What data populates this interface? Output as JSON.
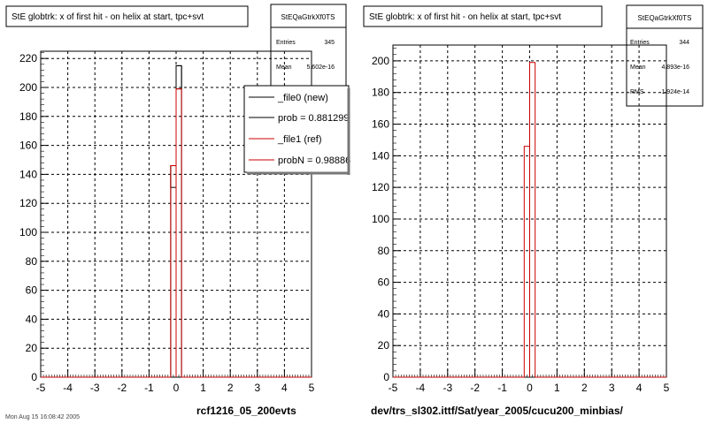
{
  "chart_data": [
    {
      "type": "histogram",
      "title": "StE globtrk: x of first hit - on helix at start, tpc+svt",
      "xlim": [
        -5,
        5
      ],
      "ylim": [
        0,
        225
      ],
      "x_ticks": [
        "-5",
        "-4",
        "-3",
        "-2",
        "-1",
        "0",
        "1",
        "2",
        "3",
        "4",
        "5"
      ],
      "y_ticks": [
        "0",
        "20",
        "40",
        "60",
        "80",
        "100",
        "120",
        "140",
        "160",
        "180",
        "200",
        "220"
      ],
      "grid": true,
      "xlabel": "rcf1216_05_200evts",
      "stats": {
        "name": "StEQaGtrkXf0TS",
        "rows": [
          {
            "label": "Entries",
            "value": "345"
          },
          {
            "label": "Mean",
            "value": "5.602e-16"
          }
        ]
      },
      "legend": {
        "placement": "top-right",
        "entries": [
          {
            "text": "_file0 (new)",
            "color": "#000000"
          },
          {
            "text": "prob = 0.881299",
            "color": "#000000"
          },
          {
            "text": "_file1 (ref)",
            "color": "#cc0000"
          },
          {
            "text": "probN = 0.98886",
            "color": "#cc0000"
          }
        ]
      },
      "series": [
        {
          "name": "_file0 (new)",
          "color": "#000000",
          "bins": [
            {
              "x0": -0.2,
              "x1": 0.0,
              "value": 146
            },
            {
              "x0": 0.0,
              "x1": 0.2,
              "value": 215
            }
          ],
          "box_bins": [
            {
              "x0": -0.2,
              "x1": 0.0,
              "lo": 131,
              "hi": 146
            },
            {
              "x0": 0.0,
              "x1": 0.2,
              "lo": 199,
              "hi": 215
            }
          ]
        },
        {
          "name": "_file1 (ref)",
          "color": "#cc0000",
          "bins": [
            {
              "x0": -0.2,
              "x1": 0.0,
              "value": 146
            },
            {
              "x0": 0.0,
              "x1": 0.2,
              "value": 199
            }
          ]
        }
      ]
    },
    {
      "type": "histogram",
      "title": "StE globtrk: x of first hit - on helix at start, tpc+svt",
      "xlim": [
        -5,
        5
      ],
      "ylim": [
        0,
        210
      ],
      "x_ticks": [
        "-5",
        "-4",
        "-3",
        "-2",
        "-1",
        "0",
        "1",
        "2",
        "3",
        "4",
        "5"
      ],
      "y_ticks": [
        "0",
        "20",
        "40",
        "60",
        "80",
        "100",
        "120",
        "140",
        "160",
        "180",
        "200"
      ],
      "grid": true,
      "xlabel": "dev/trs_sl302.ittf/Sat/year_2005/cucu200_minbias/",
      "stats": {
        "name": "StEQaGtrkXf0TS",
        "rows": [
          {
            "label": "Entries",
            "value": "344"
          },
          {
            "label": "Mean",
            "value": "4.893e-16"
          },
          {
            "label": "RMS",
            "value": "1.924e-14"
          }
        ]
      },
      "series": [
        {
          "name": "",
          "color": "#cc0000",
          "bins": [
            {
              "x0": -0.2,
              "x1": 0.0,
              "value": 146
            },
            {
              "x0": 0.0,
              "x1": 0.2,
              "value": 199
            }
          ]
        }
      ]
    }
  ],
  "footer": {
    "text": "Mon Aug 15 16:08:42 2005"
  }
}
